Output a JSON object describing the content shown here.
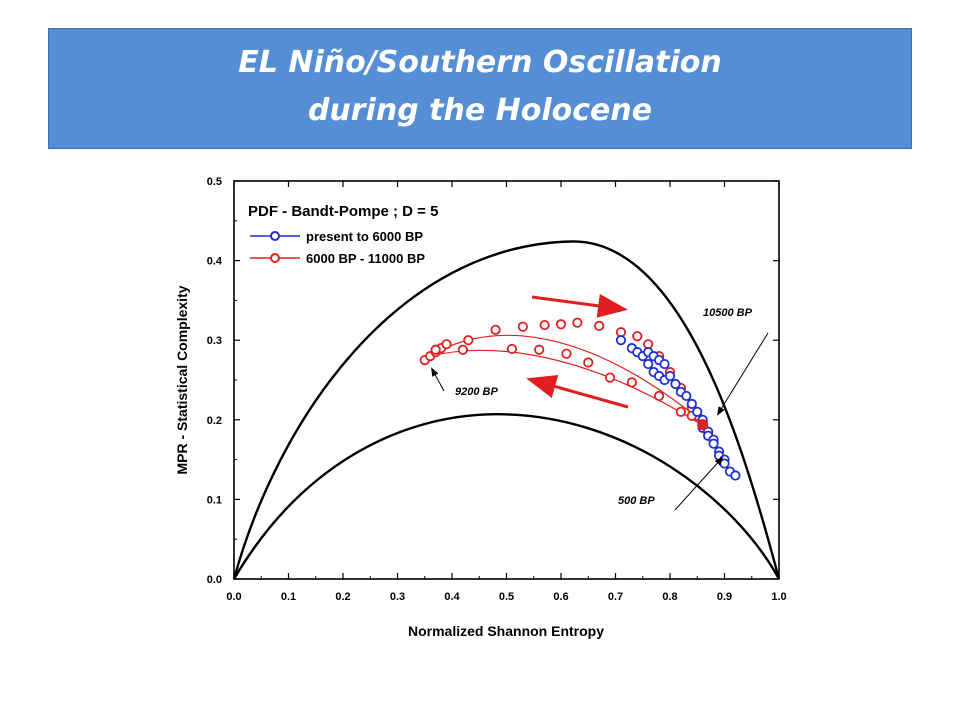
{
  "header": {
    "title_line_1": "EL Niño/Southern Oscillation",
    "title_line_2": "during the Holocene"
  },
  "chart_data": {
    "type": "scatter",
    "title": "PDF - Bandt-Pompe ; D = 5",
    "xlabel": "Normalized Shannon Entropy",
    "ylabel": "MPR - Statistical Complexity",
    "xlim": [
      0.0,
      1.0
    ],
    "ylim": [
      0.0,
      0.5
    ],
    "xticks": [
      "0.0",
      "0.1",
      "0.2",
      "0.3",
      "0.4",
      "0.5",
      "0.6",
      "0.7",
      "0.8",
      "0.9",
      "1.0"
    ],
    "yticks": [
      "0.0",
      "0.1",
      "0.2",
      "0.3",
      "0.4",
      "0.5"
    ],
    "legend_position": "top-left",
    "series": [
      {
        "name": "present to 6000 BP",
        "color": "#1f2fd0",
        "points": [
          [
            0.71,
            0.3
          ],
          [
            0.73,
            0.29
          ],
          [
            0.74,
            0.285
          ],
          [
            0.75,
            0.28
          ],
          [
            0.76,
            0.285
          ],
          [
            0.77,
            0.28
          ],
          [
            0.78,
            0.275
          ],
          [
            0.79,
            0.27
          ],
          [
            0.76,
            0.27
          ],
          [
            0.77,
            0.26
          ],
          [
            0.78,
            0.255
          ],
          [
            0.79,
            0.25
          ],
          [
            0.8,
            0.255
          ],
          [
            0.81,
            0.245
          ],
          [
            0.82,
            0.235
          ],
          [
            0.83,
            0.23
          ],
          [
            0.84,
            0.22
          ],
          [
            0.85,
            0.21
          ],
          [
            0.86,
            0.2
          ],
          [
            0.86,
            0.19
          ],
          [
            0.87,
            0.185
          ],
          [
            0.87,
            0.18
          ],
          [
            0.88,
            0.175
          ],
          [
            0.88,
            0.17
          ],
          [
            0.89,
            0.16
          ],
          [
            0.89,
            0.155
          ],
          [
            0.9,
            0.15
          ],
          [
            0.9,
            0.145
          ],
          [
            0.91,
            0.135
          ],
          [
            0.92,
            0.13
          ]
        ]
      },
      {
        "name": "6000 BP - 11000 BP",
        "color": "#e02020",
        "points": [
          [
            0.35,
            0.275
          ],
          [
            0.36,
            0.28
          ],
          [
            0.37,
            0.285
          ],
          [
            0.38,
            0.29
          ],
          [
            0.39,
            0.295
          ],
          [
            0.43,
            0.3
          ],
          [
            0.48,
            0.313
          ],
          [
            0.53,
            0.317
          ],
          [
            0.57,
            0.319
          ],
          [
            0.6,
            0.32
          ],
          [
            0.63,
            0.322
          ],
          [
            0.67,
            0.318
          ],
          [
            0.71,
            0.31
          ],
          [
            0.74,
            0.305
          ],
          [
            0.76,
            0.295
          ],
          [
            0.78,
            0.28
          ],
          [
            0.8,
            0.26
          ],
          [
            0.82,
            0.24
          ],
          [
            0.84,
            0.215
          ],
          [
            0.85,
            0.205
          ],
          [
            0.86,
            0.198
          ],
          [
            0.86,
            0.19
          ],
          [
            0.37,
            0.288
          ],
          [
            0.42,
            0.288
          ],
          [
            0.51,
            0.289
          ],
          [
            0.56,
            0.288
          ],
          [
            0.61,
            0.283
          ],
          [
            0.65,
            0.272
          ],
          [
            0.69,
            0.253
          ],
          [
            0.73,
            0.247
          ],
          [
            0.78,
            0.23
          ],
          [
            0.82,
            0.21
          ],
          [
            0.84,
            0.205
          ]
        ]
      }
    ],
    "annotations": [
      "10500 BP",
      "9200 BP",
      "500 BP"
    ]
  }
}
